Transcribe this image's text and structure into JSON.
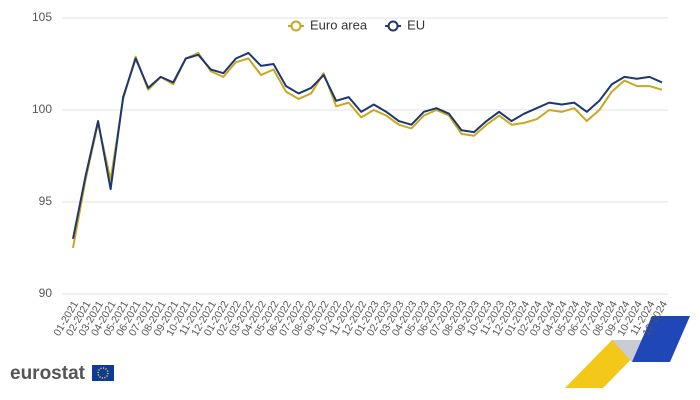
{
  "chart_data": {
    "type": "line",
    "categories": [
      "01-2021",
      "02-2021",
      "03-2021",
      "04-2021",
      "05-2021",
      "06-2021",
      "07-2021",
      "08-2021",
      "09-2021",
      "10-2021",
      "11-2021",
      "12-2021",
      "01-2022",
      "02-2022",
      "03-2022",
      "04-2022",
      "05-2022",
      "06-2022",
      "07-2022",
      "08-2022",
      "09-2022",
      "10-2022",
      "11-2022",
      "12-2022",
      "01-2023",
      "02-2023",
      "03-2023",
      "04-2023",
      "05-2023",
      "06-2023",
      "07-2023",
      "08-2023",
      "09-2023",
      "10-2023",
      "11-2023",
      "12-2023",
      "01-2024",
      "02-2024",
      "03-2024",
      "04-2024",
      "05-2024",
      "06-2024",
      "07-2024",
      "08-2024",
      "09-2024",
      "10-2024",
      "11-2024",
      "12-2024"
    ],
    "series": [
      {
        "name": "Euro area",
        "color": "#c9a820",
        "values": [
          92.5,
          96.2,
          99.3,
          96.2,
          100.6,
          102.9,
          101.1,
          101.8,
          101.4,
          102.8,
          103.1,
          102.1,
          101.8,
          102.6,
          102.8,
          101.9,
          102.2,
          101.0,
          100.6,
          100.9,
          102.0,
          100.2,
          100.4,
          99.6,
          100.0,
          99.7,
          99.2,
          99.0,
          99.7,
          100.0,
          99.7,
          98.7,
          98.6,
          99.2,
          99.7,
          99.2,
          99.3,
          99.5,
          100.0,
          99.9,
          100.1,
          99.4,
          100.0,
          101.0,
          101.6,
          101.3,
          101.3,
          101.1
        ]
      },
      {
        "name": "EU",
        "color": "#1b3870",
        "values": [
          93.0,
          96.4,
          99.4,
          95.7,
          100.7,
          102.8,
          101.2,
          101.8,
          101.5,
          102.8,
          103.0,
          102.2,
          102.0,
          102.8,
          103.1,
          102.4,
          102.5,
          101.3,
          100.9,
          101.2,
          101.9,
          100.5,
          100.7,
          99.9,
          100.3,
          99.9,
          99.4,
          99.2,
          99.9,
          100.1,
          99.8,
          98.9,
          98.8,
          99.4,
          99.9,
          99.4,
          99.8,
          100.1,
          100.4,
          100.3,
          100.4,
          99.9,
          100.5,
          101.4,
          101.8,
          101.7,
          101.8,
          101.5
        ]
      }
    ],
    "ylim": [
      90,
      105
    ],
    "yticks": [
      90,
      95,
      100,
      105
    ],
    "grid": true,
    "legend": "top"
  },
  "logo": "eurostat"
}
